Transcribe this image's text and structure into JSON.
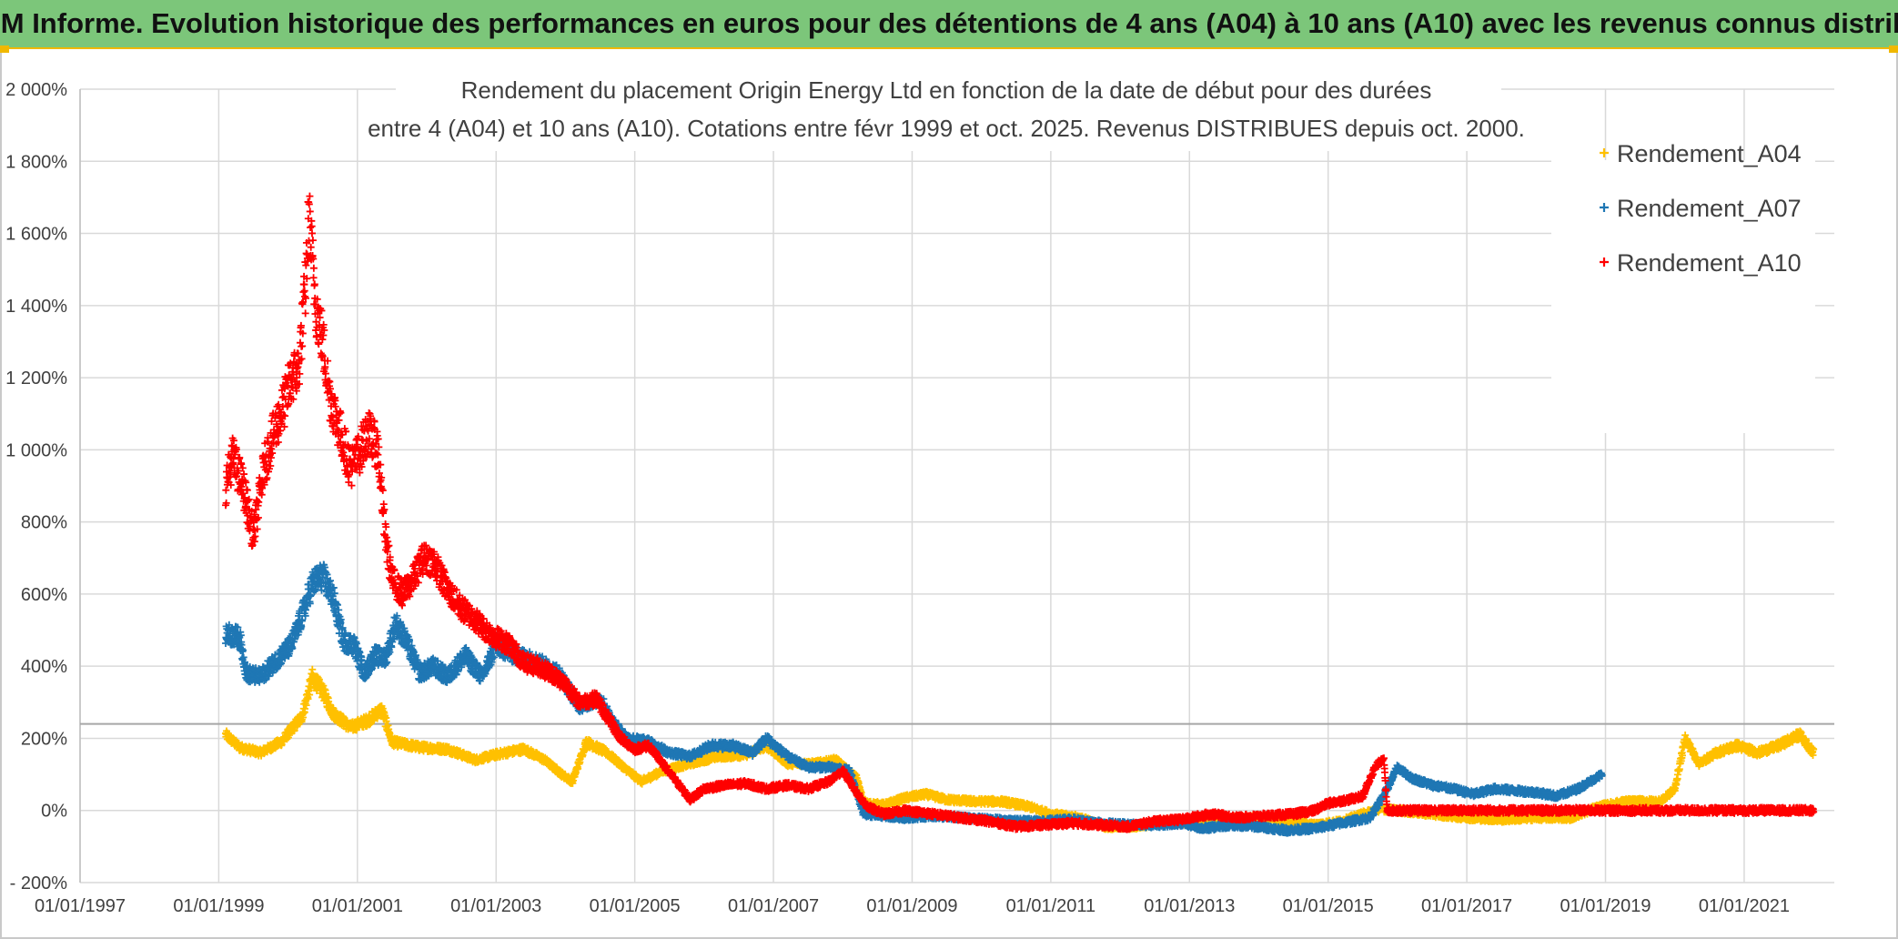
{
  "banner": {
    "title": "ADAM Informe. Evolution historique des performances en euros pour des détentions de 4 ans (A04) à 10 ans (A10) avec les revenus connus distribués"
  },
  "chart_data": {
    "type": "scatter",
    "title_line1": "Rendement du placement Origin Energy Ltd en fonction de la date de début pour des durées",
    "title_line2": "entre 4 (A04) et 10 ans (A10). Cotations entre févr 1999 et oct. 2025. Revenus DISTRIBUES depuis oct. 2000.",
    "xlabel": "",
    "ylabel": "",
    "xlim": [
      1997.0,
      2022.3
    ],
    "ylim": [
      -200,
      2000
    ],
    "y_ticks": [
      -200,
      0,
      200,
      400,
      600,
      800,
      1000,
      1200,
      1400,
      1600,
      1800,
      2000
    ],
    "y_tick_labels": [
      "- 200%",
      "0%",
      "200%",
      "400%",
      "600%",
      "800%",
      "1 000%",
      "1 200%",
      "1 400%",
      "1 600%",
      "1 800%",
      "2 000%"
    ],
    "x_ticks": [
      1997,
      1999,
      2001,
      2003,
      2005,
      2007,
      2009,
      2011,
      2013,
      2015,
      2017,
      2019,
      2021
    ],
    "x_tick_labels": [
      "01/01/1997",
      "01/01/1999",
      "01/01/2001",
      "01/01/2003",
      "01/01/2005",
      "01/01/2007",
      "01/01/2009",
      "01/01/2011",
      "01/01/2013",
      "01/01/2015",
      "01/01/2017",
      "01/01/2019",
      "01/01/2021"
    ],
    "reference_line_y": 240,
    "legend_position": "top-right",
    "series": [
      {
        "name": "Rendement_A04",
        "color": "#ffc000",
        "marker": "plus",
        "x_start": 1999.1,
        "x_end": 2022.0,
        "points": [
          [
            1999.1,
            210
          ],
          [
            1999.3,
            175
          ],
          [
            1999.6,
            160
          ],
          [
            1999.9,
            190
          ],
          [
            2000.2,
            260
          ],
          [
            2000.35,
            370
          ],
          [
            2000.5,
            330
          ],
          [
            2000.65,
            270
          ],
          [
            2000.9,
            230
          ],
          [
            2001.15,
            250
          ],
          [
            2001.35,
            280
          ],
          [
            2001.5,
            190
          ],
          [
            2001.9,
            175
          ],
          [
            2002.3,
            170
          ],
          [
            2002.7,
            140
          ],
          [
            2003.0,
            155
          ],
          [
            2003.4,
            170
          ],
          [
            2003.7,
            140
          ],
          [
            2003.95,
            100
          ],
          [
            2004.1,
            80
          ],
          [
            2004.3,
            190
          ],
          [
            2004.6,
            160
          ],
          [
            2004.9,
            110
          ],
          [
            2005.1,
            80
          ],
          [
            2005.4,
            110
          ],
          [
            2005.8,
            130
          ],
          [
            2006.2,
            150
          ],
          [
            2006.6,
            155
          ],
          [
            2006.9,
            180
          ],
          [
            2007.2,
            130
          ],
          [
            2007.6,
            130
          ],
          [
            2007.9,
            140
          ],
          [
            2008.2,
            90
          ],
          [
            2008.3,
            20
          ],
          [
            2008.6,
            15
          ],
          [
            2008.9,
            35
          ],
          [
            2009.2,
            45
          ],
          [
            2009.5,
            30
          ],
          [
            2009.9,
            25
          ],
          [
            2010.3,
            25
          ],
          [
            2010.7,
            10
          ],
          [
            2011.0,
            -10
          ],
          [
            2011.4,
            -20
          ],
          [
            2011.8,
            -45
          ],
          [
            2012.2,
            -45
          ],
          [
            2012.7,
            -30
          ],
          [
            2013.1,
            -35
          ],
          [
            2013.6,
            -25
          ],
          [
            2014.0,
            -20
          ],
          [
            2014.4,
            -30
          ],
          [
            2014.8,
            -40
          ],
          [
            2015.2,
            -30
          ],
          [
            2015.5,
            -10
          ],
          [
            2015.75,
            5
          ],
          [
            2016.0,
            0
          ],
          [
            2016.5,
            -10
          ],
          [
            2017.0,
            -20
          ],
          [
            2017.5,
            -25
          ],
          [
            2018.0,
            -20
          ],
          [
            2018.5,
            -20
          ],
          [
            2018.9,
            10
          ],
          [
            2019.3,
            25
          ],
          [
            2019.8,
            25
          ],
          [
            2020.0,
            60
          ],
          [
            2020.15,
            200
          ],
          [
            2020.35,
            130
          ],
          [
            2020.6,
            160
          ],
          [
            2020.9,
            180
          ],
          [
            2021.2,
            160
          ],
          [
            2021.5,
            180
          ],
          [
            2021.8,
            210
          ],
          [
            2022.0,
            160
          ]
        ]
      },
      {
        "name": "Rendement_A07",
        "color": "#1f77b4",
        "marker": "plus",
        "x_start": 1999.1,
        "x_end": 2018.95,
        "points": [
          [
            1999.1,
            490
          ],
          [
            1999.3,
            480
          ],
          [
            1999.4,
            380
          ],
          [
            1999.6,
            370
          ],
          [
            1999.85,
            420
          ],
          [
            2000.05,
            460
          ],
          [
            2000.2,
            540
          ],
          [
            2000.35,
            630
          ],
          [
            2000.5,
            650
          ],
          [
            2000.65,
            590
          ],
          [
            2000.8,
            470
          ],
          [
            2000.95,
            460
          ],
          [
            2001.1,
            380
          ],
          [
            2001.25,
            430
          ],
          [
            2001.4,
            420
          ],
          [
            2001.55,
            520
          ],
          [
            2001.7,
            470
          ],
          [
            2001.9,
            380
          ],
          [
            2002.1,
            400
          ],
          [
            2002.3,
            370
          ],
          [
            2002.55,
            430
          ],
          [
            2002.8,
            370
          ],
          [
            2003.0,
            460
          ],
          [
            2003.3,
            430
          ],
          [
            2003.6,
            410
          ],
          [
            2003.9,
            380
          ],
          [
            2004.2,
            290
          ],
          [
            2004.5,
            310
          ],
          [
            2004.7,
            240
          ],
          [
            2004.9,
            200
          ],
          [
            2005.2,
            190
          ],
          [
            2005.5,
            160
          ],
          [
            2005.8,
            150
          ],
          [
            2006.1,
            180
          ],
          [
            2006.4,
            180
          ],
          [
            2006.7,
            160
          ],
          [
            2006.9,
            200
          ],
          [
            2007.2,
            150
          ],
          [
            2007.5,
            120
          ],
          [
            2007.8,
            120
          ],
          [
            2008.1,
            110
          ],
          [
            2008.3,
            -10
          ],
          [
            2008.6,
            -15
          ],
          [
            2008.9,
            -20
          ],
          [
            2009.3,
            -15
          ],
          [
            2009.7,
            -20
          ],
          [
            2010.1,
            -25
          ],
          [
            2010.5,
            -30
          ],
          [
            2010.9,
            -30
          ],
          [
            2011.3,
            -25
          ],
          [
            2011.7,
            -35
          ],
          [
            2012.1,
            -40
          ],
          [
            2012.5,
            -40
          ],
          [
            2012.9,
            -35
          ],
          [
            2013.2,
            -50
          ],
          [
            2013.6,
            -40
          ],
          [
            2014.0,
            -45
          ],
          [
            2014.4,
            -55
          ],
          [
            2014.8,
            -50
          ],
          [
            2015.2,
            -35
          ],
          [
            2015.6,
            -20
          ],
          [
            2015.8,
            40
          ],
          [
            2016.0,
            120
          ],
          [
            2016.2,
            90
          ],
          [
            2016.5,
            70
          ],
          [
            2016.8,
            60
          ],
          [
            2017.1,
            45
          ],
          [
            2017.4,
            60
          ],
          [
            2017.7,
            55
          ],
          [
            2018.0,
            50
          ],
          [
            2018.3,
            40
          ],
          [
            2018.6,
            60
          ],
          [
            2018.95,
            100
          ]
        ]
      },
      {
        "name": "Rendement_A10",
        "color": "#ff0000",
        "marker": "plus",
        "x_start": 1999.1,
        "x_end": 2022.0,
        "points": [
          [
            1999.1,
            900
          ],
          [
            1999.2,
            980
          ],
          [
            1999.35,
            900
          ],
          [
            1999.5,
            760
          ],
          [
            1999.65,
            950
          ],
          [
            1999.8,
            1050
          ],
          [
            1999.95,
            1130
          ],
          [
            2000.05,
            1200
          ],
          [
            2000.15,
            1220
          ],
          [
            2000.25,
            1450
          ],
          [
            2000.3,
            1650
          ],
          [
            2000.4,
            1400
          ],
          [
            2000.5,
            1300
          ],
          [
            2000.6,
            1150
          ],
          [
            2000.75,
            1050
          ],
          [
            2000.9,
            950
          ],
          [
            2001.0,
            980
          ],
          [
            2001.15,
            1050
          ],
          [
            2001.3,
            1000
          ],
          [
            2001.4,
            760
          ],
          [
            2001.5,
            640
          ],
          [
            2001.65,
            600
          ],
          [
            2001.8,
            640
          ],
          [
            2001.95,
            700
          ],
          [
            2002.1,
            690
          ],
          [
            2002.3,
            610
          ],
          [
            2002.5,
            560
          ],
          [
            2002.7,
            530
          ],
          [
            2002.85,
            500
          ],
          [
            2003.0,
            480
          ],
          [
            2003.2,
            460
          ],
          [
            2003.4,
            410
          ],
          [
            2003.6,
            400
          ],
          [
            2003.8,
            380
          ],
          [
            2004.0,
            350
          ],
          [
            2004.2,
            300
          ],
          [
            2004.45,
            310
          ],
          [
            2004.6,
            260
          ],
          [
            2004.8,
            200
          ],
          [
            2005.0,
            170
          ],
          [
            2005.2,
            180
          ],
          [
            2005.4,
            130
          ],
          [
            2005.6,
            80
          ],
          [
            2005.8,
            30
          ],
          [
            2006.0,
            60
          ],
          [
            2006.3,
            70
          ],
          [
            2006.6,
            75
          ],
          [
            2006.9,
            60
          ],
          [
            2007.2,
            70
          ],
          [
            2007.5,
            60
          ],
          [
            2007.8,
            80
          ],
          [
            2008.0,
            110
          ],
          [
            2008.2,
            50
          ],
          [
            2008.35,
            10
          ],
          [
            2008.6,
            -10
          ],
          [
            2008.9,
            0
          ],
          [
            2009.3,
            -10
          ],
          [
            2009.7,
            -20
          ],
          [
            2010.1,
            -30
          ],
          [
            2010.5,
            -45
          ],
          [
            2010.9,
            -40
          ],
          [
            2011.3,
            -35
          ],
          [
            2011.7,
            -40
          ],
          [
            2012.1,
            -45
          ],
          [
            2012.5,
            -30
          ],
          [
            2012.9,
            -25
          ],
          [
            2013.3,
            -10
          ],
          [
            2013.7,
            -20
          ],
          [
            2014.1,
            -15
          ],
          [
            2014.5,
            -10
          ],
          [
            2014.8,
            0
          ],
          [
            2015.0,
            20
          ],
          [
            2015.3,
            30
          ],
          [
            2015.5,
            40
          ],
          [
            2015.65,
            110
          ],
          [
            2015.8,
            150
          ],
          [
            2015.85,
            0
          ],
          [
            2016.5,
            0
          ],
          [
            2017.5,
            0
          ],
          [
            2018.5,
            0
          ],
          [
            2019.5,
            0
          ],
          [
            2020.5,
            0
          ],
          [
            2021.5,
            0
          ],
          [
            2022.0,
            0
          ]
        ]
      }
    ]
  }
}
